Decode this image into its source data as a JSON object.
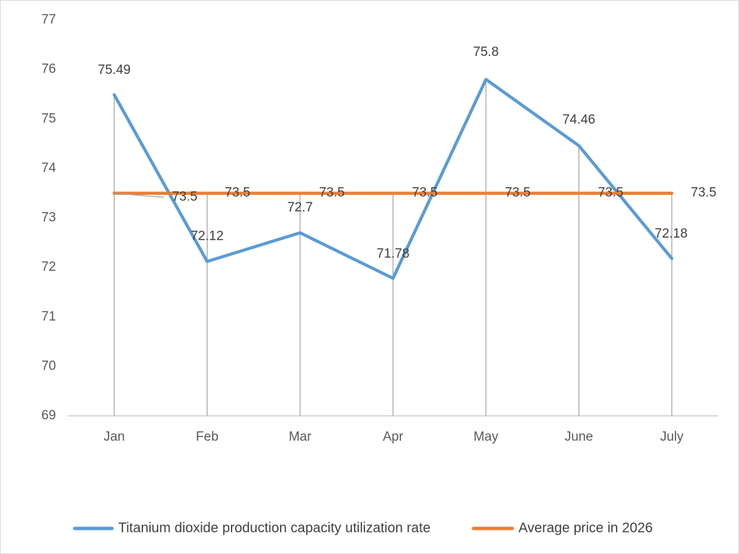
{
  "chart_data": {
    "type": "line",
    "categories": [
      "Jan",
      "Feb",
      "Mar",
      "Apr",
      "May",
      "June",
      "July"
    ],
    "ylim": [
      69,
      77
    ],
    "yticks": [
      69,
      70,
      71,
      72,
      73,
      74,
      75,
      76,
      77
    ],
    "ytick_labels": [
      "69",
      "70",
      "71",
      "72",
      "73",
      "74",
      "75",
      "76",
      "77"
    ],
    "grid": false,
    "drop_lines": true,
    "legend_position": "bottom",
    "series": [
      {
        "name": "Titanium dioxide production capacity utilization rate",
        "color": "#5b9bd5",
        "values": [
          75.49,
          72.12,
          72.7,
          71.78,
          75.8,
          74.46,
          72.18
        ],
        "labels": [
          "75.49",
          "72.12",
          "72.7",
          "71.78",
          "75.8",
          "74.46",
          "72.18"
        ]
      },
      {
        "name": "Average price in 2026",
        "color": "#ed7d31",
        "values": [
          73.5,
          73.5,
          73.5,
          73.5,
          73.5,
          73.5,
          73.5
        ],
        "labels": [
          "73.5",
          "73.5",
          "73.5",
          "73.5",
          "73.5",
          "73.5",
          "73.5"
        ]
      }
    ]
  }
}
